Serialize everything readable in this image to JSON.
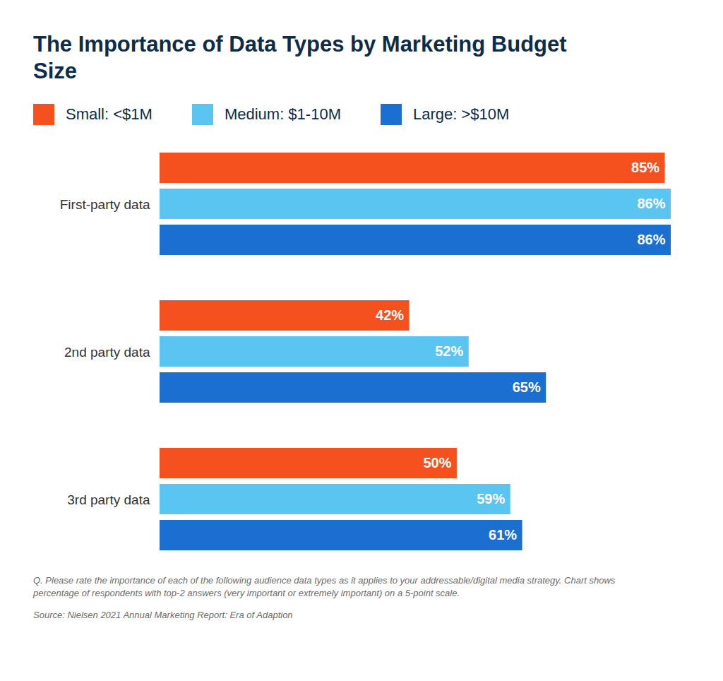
{
  "chart_data": {
    "type": "bar",
    "title": "The Importance of Data Types by Marketing Budget Size",
    "categories": [
      "First-party data",
      "2nd party data",
      "3rd party data"
    ],
    "series": [
      {
        "name": "Small: <$1M",
        "color": "#f4511e",
        "values": [
          85,
          42,
          50
        ],
        "value_labels": [
          "85%",
          "42%",
          "50%"
        ]
      },
      {
        "name": "Medium: $1-10M",
        "color": "#5bc5f2",
        "values": [
          86,
          52,
          59
        ],
        "value_labels": [
          "86%",
          "52%",
          "59%"
        ]
      },
      {
        "name": "Large: >$10M",
        "color": "#1a6fd1",
        "values": [
          86,
          65,
          61
        ],
        "value_labels": [
          "86%",
          "65%",
          "61%"
        ]
      }
    ],
    "orientation": "horizontal",
    "data_labels": true,
    "tick_labels": false,
    "legend": "top-left",
    "grid": false,
    "annotations": [
      "Q. Please rate the importance of each of the following audience data types as it applies to your addressable/digital media strategy. Chart shows percentage of respondents with top-2 answers (very important or extremely important) on a 5-point scale.",
      "Source: Nielsen 2021 Annual Marketing Report: Era of Adaption"
    ]
  }
}
